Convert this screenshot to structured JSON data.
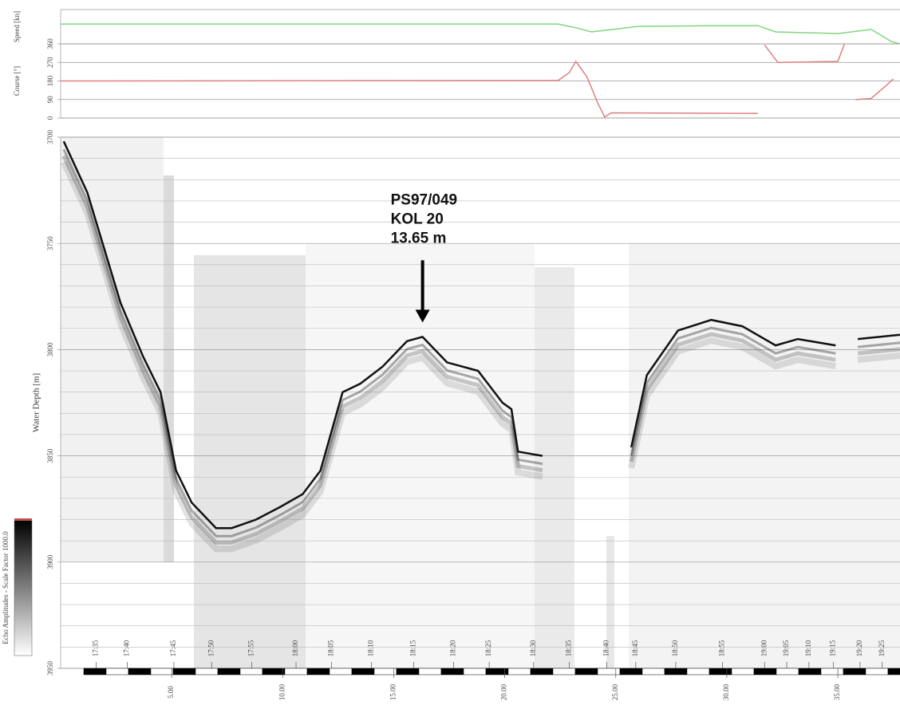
{
  "chart_data": [
    {
      "type": "line",
      "y_label": "Speed [kn]",
      "xlim": [
        0,
        37.8
      ],
      "ylim": [
        0,
        10
      ],
      "series": [
        {
          "color": "#7fd67f",
          "x": [
            0,
            22.4,
            23.2,
            23.9,
            24.6,
            26.0,
            29.6,
            31.4,
            32.2,
            35.0,
            36.5,
            37.0,
            37.4,
            37.8
          ],
          "values": [
            5.8,
            5.8,
            4.7,
            3.5,
            4.0,
            5.1,
            5.3,
            5.3,
            3.5,
            3.0,
            4.2,
            2.3,
            0.7,
            0
          ]
        }
      ]
    },
    {
      "type": "line",
      "y_label": "Course [°]",
      "xlim": [
        0,
        37.8
      ],
      "ylim": [
        0,
        360
      ],
      "yticks": [
        0,
        90,
        180,
        270,
        360
      ],
      "series": [
        {
          "color": "#e07f7f",
          "x": [
            0,
            22.4,
            22.9,
            23.2,
            23.7,
            24.2,
            24.5,
            24.8,
            31.4,
            31.7,
            31.7,
            32.3,
            35.0,
            35.3,
            35.4,
            35.8,
            36.5,
            37.2,
            37.5
          ],
          "values": [
            180,
            182,
            220,
            275,
            200,
            70,
            5,
            25,
            22,
            null,
            355,
            270,
            275,
            360,
            null,
            90,
            95,
            160,
            190
          ]
        }
      ]
    },
    {
      "type": "echogram",
      "y_label": "Water Depth [m]",
      "xlim": [
        0,
        37.8
      ],
      "ylim": [
        3700,
        3950
      ],
      "y_inverted": true,
      "yticks": [
        3700,
        3750,
        3800,
        3850,
        3900,
        3950
      ],
      "minor_yticks": [
        3710,
        3720,
        3730,
        3740,
        3760,
        3770,
        3780,
        3790,
        3810,
        3820,
        3830,
        3840,
        3860,
        3870,
        3880,
        3890,
        3910,
        3920,
        3930,
        3940
      ],
      "xticks": [
        {
          "value": 5,
          "label": "5.00"
        },
        {
          "value": 10,
          "label": "10.00"
        },
        {
          "value": 15,
          "label": "15.00"
        },
        {
          "value": 20,
          "label": "20.00"
        },
        {
          "value": 25,
          "label": "25.00"
        },
        {
          "value": 30,
          "label": "30.00"
        },
        {
          "value": 35,
          "label": "35.00"
        }
      ],
      "time_labels": {
        "labels": [
          "17:35",
          "17:40",
          "17:45",
          "17:50",
          "17:55",
          "18:00",
          "18:05",
          "18:10",
          "18:15",
          "18:20",
          "18:25",
          "18:30",
          "18:35",
          "18:40",
          "18:45",
          "18:50",
          "18:55",
          "19:00",
          "19:05",
          "19:10",
          "19:15",
          "19:20",
          "19:25"
        ],
        "x": [
          1.6,
          3.0,
          5.1,
          6.8,
          8.6,
          10.6,
          12.2,
          14.0,
          15.9,
          17.7,
          19.3,
          21.3,
          22.9,
          24.6,
          25.9,
          27.7,
          29.8,
          31.7,
          32.7,
          33.7,
          34.8,
          36.0,
          37.0
        ]
      },
      "series": [
        {
          "color": "#111111",
          "x": [
            0.14,
            1.2,
            2.7,
            3.7,
            4.5,
            5.2,
            5.9,
            7.0,
            7.7,
            8.8,
            9.9,
            10.9,
            11.7,
            12.7,
            13.5,
            14.5,
            15.6,
            16.3,
            17.4,
            18.8,
            19.9,
            20.3,
            20.6,
            21.7,
            23.0,
            25.7,
            26.4,
            27.8,
            29.3,
            30.7,
            32.2,
            33.2,
            34.9,
            35.4,
            35.9,
            37.8
          ],
          "values": [
            3702,
            3726,
            3778,
            3803,
            3820,
            3857,
            3872,
            3884,
            3884,
            3880,
            3874,
            3868,
            3857,
            3820,
            3816,
            3808,
            3796,
            3794,
            3806,
            3810,
            3825,
            3828,
            3848,
            3850,
            null,
            3846,
            3812,
            3791,
            3786,
            3789,
            3798,
            3795,
            3798,
            null,
            3795,
            3793
          ]
        }
      ],
      "annotation": {
        "lines": [
          "PS97/049",
          "KOL 20",
          "13.65 m"
        ],
        "x": 16.3,
        "y": 3788
      },
      "colorbar_label": "Echo Amplitudes - Scale Factor 1000.0"
    }
  ]
}
